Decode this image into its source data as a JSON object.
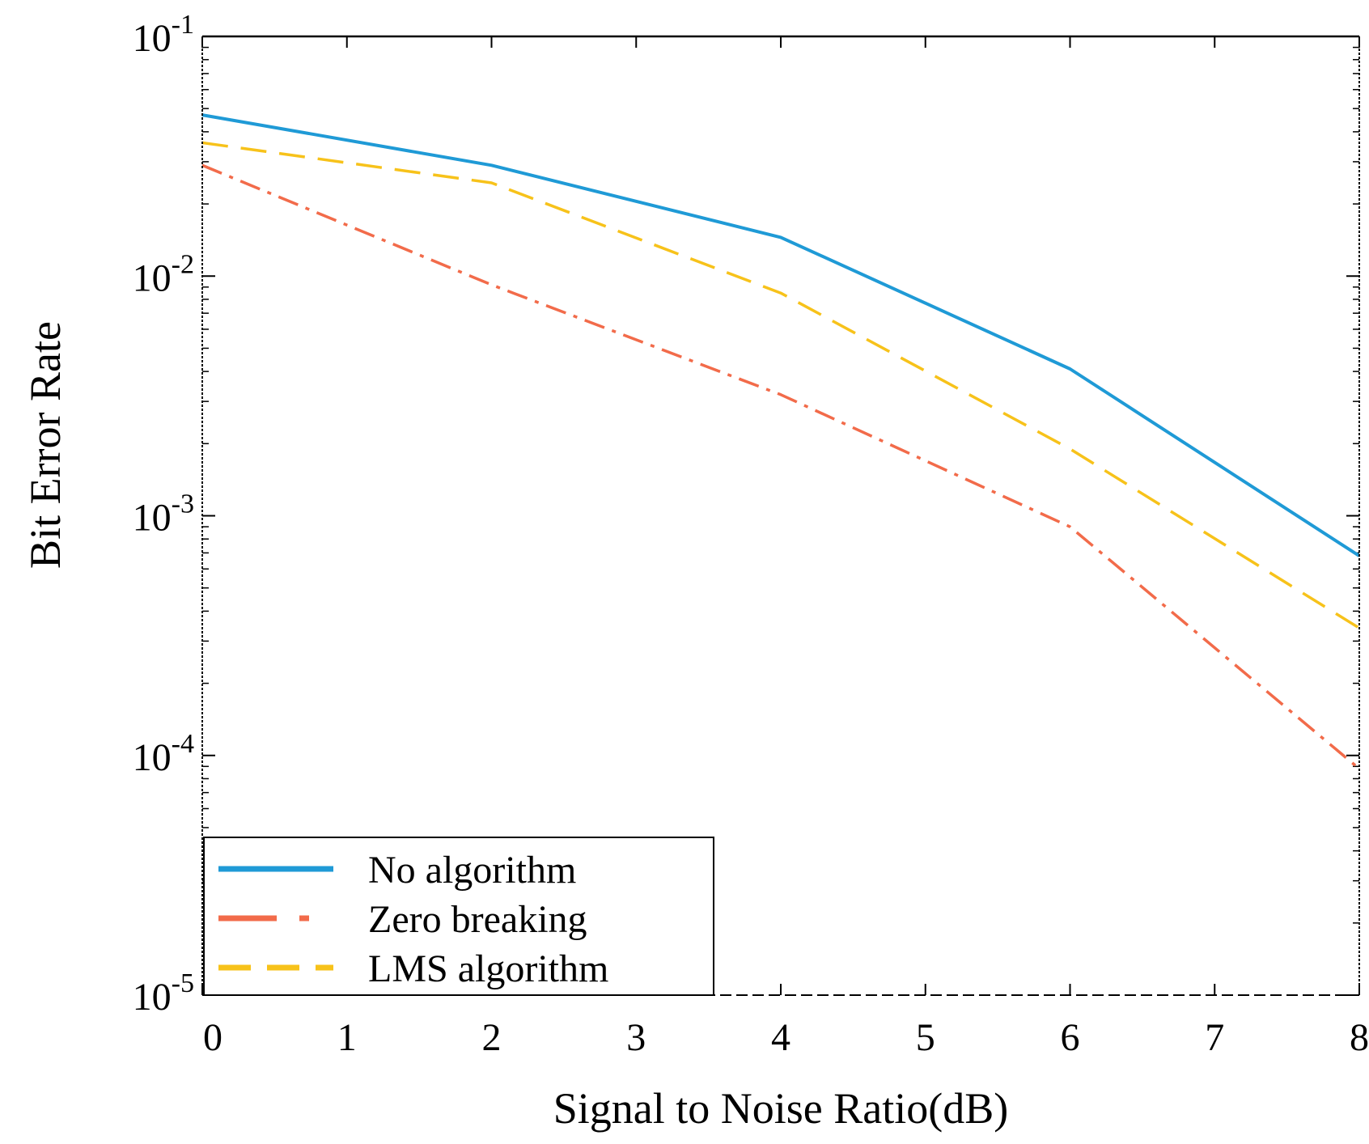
{
  "chart_data": {
    "type": "line",
    "title": "",
    "xlabel": "Signal to Noise Ratio(dB)",
    "ylabel": "Bit Error Rate",
    "xlim": [
      0,
      8
    ],
    "ylim": [
      1e-05,
      0.1
    ],
    "yscale": "log",
    "x_ticks": [
      {
        "value": 0,
        "label": "0"
      },
      {
        "value": 1,
        "label": "1"
      },
      {
        "value": 2,
        "label": "2"
      },
      {
        "value": 3,
        "label": "3"
      },
      {
        "value": 4,
        "label": "4"
      },
      {
        "value": 5,
        "label": "5"
      },
      {
        "value": 6,
        "label": "6"
      },
      {
        "value": 7,
        "label": "7"
      },
      {
        "value": 8,
        "label": "8"
      }
    ],
    "y_ticks": [
      {
        "value": 0.1,
        "base": "10",
        "exp": "-1"
      },
      {
        "value": 0.01,
        "base": "10",
        "exp": "-2"
      },
      {
        "value": 0.001,
        "base": "10",
        "exp": "-3"
      },
      {
        "value": 0.0001,
        "base": "10",
        "exp": "-4"
      },
      {
        "value": 1e-05,
        "base": "10",
        "exp": "-5"
      }
    ],
    "x": [
      0,
      2,
      4,
      6,
      8
    ],
    "series": [
      {
        "name": "No algorithm",
        "style": "solid",
        "color": "#1f9ad6",
        "values": [
          0.047,
          0.029,
          0.0145,
          0.0041,
          0.00068
        ]
      },
      {
        "name": "Zero breaking",
        "style": "dashdot",
        "color": "#f26b4a",
        "values": [
          0.029,
          0.0092,
          0.0032,
          0.0009,
          8.8e-05
        ]
      },
      {
        "name": "LMS algorithm",
        "style": "dashed",
        "color": "#f7c21a",
        "values": [
          0.036,
          0.0245,
          0.0085,
          0.0019,
          0.00034
        ]
      }
    ],
    "legend_position": "bottom-left",
    "grid": false
  }
}
